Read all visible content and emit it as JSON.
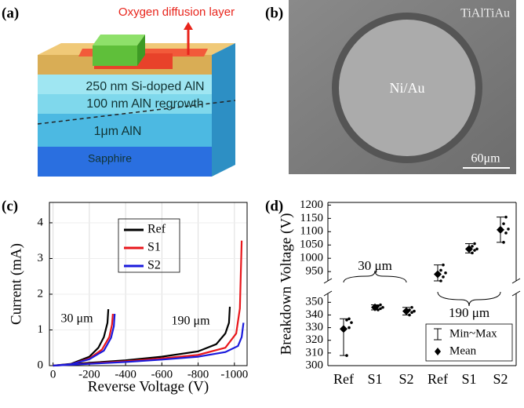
{
  "panels": {
    "a": {
      "label": "(a)",
      "annotation": "Oxygen diffusion layer",
      "layers": [
        "250 nm Si-doped AlN",
        "100 nm AlN regrowth",
        "1μm AlN",
        "Sapphire"
      ]
    },
    "b": {
      "label": "(b)",
      "labels": [
        "TiAlTiAu",
        "Ni/Au"
      ],
      "scale_bar": "60μm"
    }
  },
  "chart_data": [
    {
      "type": "line",
      "panel_label": "(c)",
      "xlabel": "Reverse Voltage (V)",
      "ylabel": "Current  (mA)",
      "xlim": [
        20,
        -1070
      ],
      "xticks": [
        0,
        -200,
        -400,
        -600,
        -800,
        -1000
      ],
      "ylim": [
        0,
        4.57
      ],
      "yticks": [
        0,
        1,
        2,
        3,
        4
      ],
      "grid": true,
      "legend": "upper center",
      "annotations": [
        "30 μm",
        "190 μm"
      ],
      "series": [
        {
          "name": "Ref",
          "color": "#000000",
          "x": [
            0,
            -100,
            -200,
            -250,
            -280,
            -300,
            -305,
            null,
            0,
            -200,
            -400,
            -600,
            -800,
            -900,
            -950,
            -970,
            -975
          ],
          "values": [
            0,
            0.05,
            0.25,
            0.5,
            0.8,
            1.2,
            1.58,
            null,
            0,
            0.08,
            0.15,
            0.25,
            0.4,
            0.6,
            0.9,
            1.2,
            1.65
          ]
        },
        {
          "name": "S1",
          "color": "#e8161b",
          "x": [
            0,
            -100,
            -200,
            -270,
            -310,
            -325,
            -330,
            null,
            0,
            -200,
            -400,
            -600,
            -800,
            -950,
            -1010,
            -1030,
            -1040
          ],
          "values": [
            0,
            0.04,
            0.2,
            0.45,
            0.8,
            1.15,
            1.45,
            null,
            0,
            0.06,
            0.12,
            0.2,
            0.3,
            0.5,
            0.9,
            1.6,
            3.5
          ]
        },
        {
          "name": "S2",
          "color": "#1a1adc",
          "x": [
            0,
            -100,
            -200,
            -280,
            -320,
            -335,
            -340,
            null,
            0,
            -200,
            -400,
            -600,
            -800,
            -950,
            -1020,
            -1040,
            -1050
          ],
          "values": [
            0,
            0.04,
            0.18,
            0.42,
            0.78,
            1.1,
            1.45,
            null,
            0,
            0.05,
            0.1,
            0.17,
            0.25,
            0.38,
            0.55,
            0.8,
            1.2
          ]
        }
      ]
    },
    {
      "type": "errorbar",
      "panel_label": "(d)",
      "ylabel": "Breakdown Voltage (V)",
      "categories": [
        "Ref",
        "S1",
        "S2",
        "Ref",
        "S1",
        "S2"
      ],
      "groups": [
        "30 μm",
        "190 μm"
      ],
      "ylim": [
        300,
        1210
      ],
      "axis_break": [
        357,
        915
      ],
      "yticks": [
        300,
        310,
        320,
        330,
        340,
        350,
        950,
        1000,
        1050,
        1100,
        1150,
        1200
      ],
      "series": [
        {
          "name": "Mean",
          "color": "#000000",
          "values": [
            329,
            346,
            343,
            940,
            1035,
            1107
          ]
        }
      ],
      "range": {
        "name": "Min~Max",
        "min": [
          308,
          344,
          340,
          915,
          1020,
          1060
        ],
        "max": [
          337,
          348,
          346,
          975,
          1055,
          1155
        ]
      },
      "points": [
        [
          308,
          330,
          334,
          336,
          337
        ],
        [
          344,
          345,
          346,
          347,
          348
        ],
        [
          340,
          342,
          343,
          344,
          346
        ],
        [
          915,
          930,
          945,
          955,
          975
        ],
        [
          1020,
          1030,
          1035,
          1045,
          1055
        ],
        [
          1060,
          1095,
          1110,
          1130,
          1155
        ]
      ]
    }
  ]
}
